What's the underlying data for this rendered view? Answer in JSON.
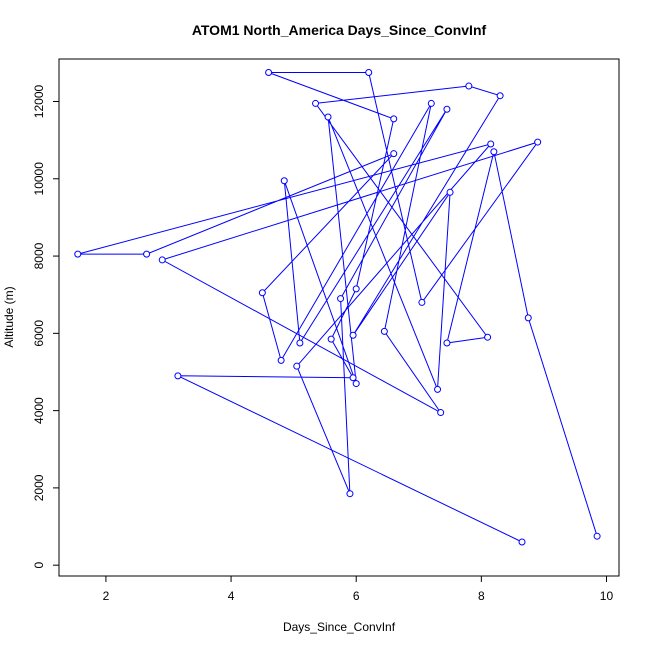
{
  "chart_data": {
    "type": "line",
    "title": "ATOM1 North_America Days_Since_ConvInf",
    "xlabel": "Days_Since_ConvInf",
    "ylabel": "Altitude (m)",
    "xlim": [
      1.25,
      10.2
    ],
    "ylim": [
      -280,
      13100
    ],
    "xticks": [
      2,
      4,
      6,
      8,
      10
    ],
    "yticks": [
      0,
      2000,
      4000,
      6000,
      8000,
      10000,
      12000
    ],
    "line_color": "#0000ff",
    "marker": "open-circle",
    "grid": false,
    "series": [
      {
        "points": [
          {
            "x": 9.85,
            "y": 750
          },
          {
            "x": 8.75,
            "y": 6400
          },
          {
            "x": 8.2,
            "y": 10700
          },
          {
            "x": 7.45,
            "y": 5750
          },
          {
            "x": 8.1,
            "y": 5900
          },
          {
            "x": 5.35,
            "y": 11950
          },
          {
            "x": 7.8,
            "y": 12400
          },
          {
            "x": 8.3,
            "y": 12150
          },
          {
            "x": 5.95,
            "y": 5950
          },
          {
            "x": 7.5,
            "y": 9650
          },
          {
            "x": 7.3,
            "y": 4550
          },
          {
            "x": 5.55,
            "y": 11600
          },
          {
            "x": 6.0,
            "y": 4700
          },
          {
            "x": 4.85,
            "y": 9950
          },
          {
            "x": 5.1,
            "y": 5750
          },
          {
            "x": 7.45,
            "y": 11800
          },
          {
            "x": 5.75,
            "y": 6900
          },
          {
            "x": 5.9,
            "y": 1850
          },
          {
            "x": 5.05,
            "y": 5150
          },
          {
            "x": 8.15,
            "y": 10900
          },
          {
            "x": 1.55,
            "y": 8050
          },
          {
            "x": 2.65,
            "y": 8050
          },
          {
            "x": 6.6,
            "y": 10650
          },
          {
            "x": 4.5,
            "y": 7050
          },
          {
            "x": 4.8,
            "y": 5300
          },
          {
            "x": 7.2,
            "y": 11950
          },
          {
            "x": 6.45,
            "y": 6050
          },
          {
            "x": 7.35,
            "y": 3950
          },
          {
            "x": 2.9,
            "y": 7900
          },
          {
            "x": 8.9,
            "y": 10950
          },
          {
            "x": 7.05,
            "y": 6800
          },
          {
            "x": 6.2,
            "y": 12750
          },
          {
            "x": 4.6,
            "y": 12750
          },
          {
            "x": 6.6,
            "y": 11550
          },
          {
            "x": 6.0,
            "y": 7150
          },
          {
            "x": 5.6,
            "y": 5850
          },
          {
            "x": 5.95,
            "y": 4850
          },
          {
            "x": 3.15,
            "y": 4900
          },
          {
            "x": 8.65,
            "y": 600
          }
        ]
      }
    ]
  }
}
